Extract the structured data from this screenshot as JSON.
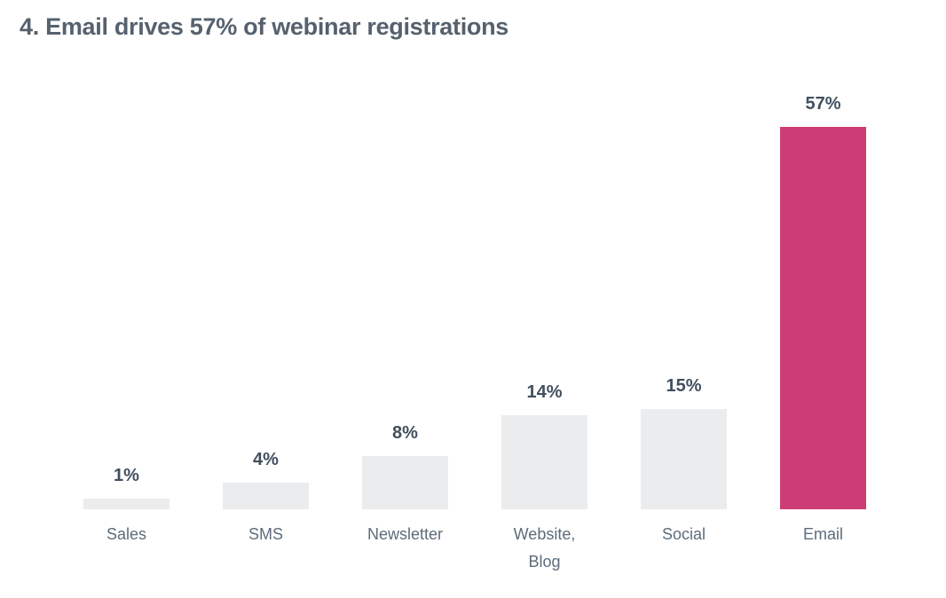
{
  "chart_data": {
    "type": "bar",
    "title": "4. Email drives 57% of webinar registrations",
    "categories": [
      "Sales",
      "SMS",
      "Newsletter",
      "Website, Blog",
      "Social",
      "Email"
    ],
    "categories_display": [
      "Sales",
      "SMS",
      "Newsletter",
      "Website,\nBlog",
      "Social",
      "Email"
    ],
    "values": [
      1,
      4,
      8,
      14,
      15,
      57
    ],
    "value_labels": [
      "1%",
      "4%",
      "8%",
      "14%",
      "15%",
      "57%"
    ],
    "xlabel": "",
    "ylabel": "",
    "ylim": [
      0,
      57
    ],
    "grid": false,
    "axes_visible": false,
    "legend": "none",
    "highlighted_category": "Email",
    "highlight_index": 5,
    "colors": {
      "background": "#ffffff",
      "bar_default": "#eaecee",
      "bar_highlight": "#cc3d76",
      "title_text": "#56616e",
      "value_label_text": "#414f5f",
      "category_label_text": "#5d6c7b"
    }
  }
}
